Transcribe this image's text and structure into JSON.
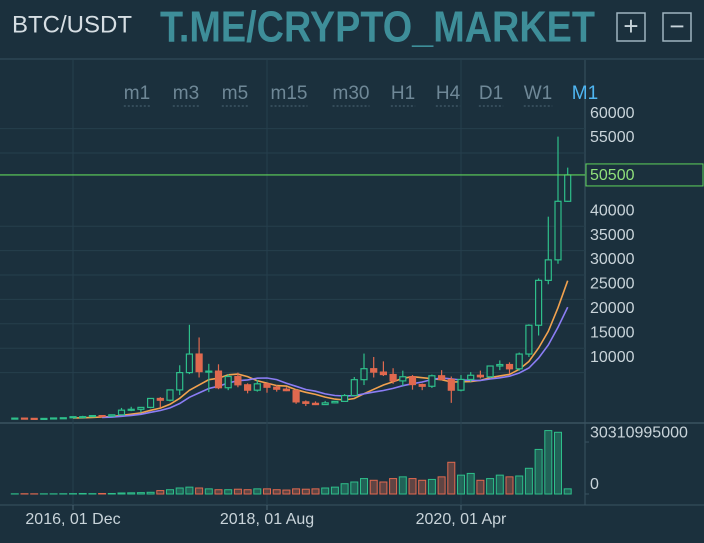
{
  "header": {
    "pair": "BTC/USDT",
    "watermark": "T.ME/CRYPTO_MARKET",
    "zoom_in": "+",
    "zoom_out": "−"
  },
  "timeframes": [
    "m1",
    "m3",
    "m5",
    "m15",
    "m30",
    "H1",
    "H4",
    "D1",
    "W1",
    "M1"
  ],
  "selected_timeframe": "M1",
  "chart_data": {
    "type": "candlestick",
    "categories": [
      null,
      null,
      null,
      null,
      null,
      null,
      "2016, 01 Dec",
      null,
      null,
      null,
      null,
      null,
      null,
      null,
      null,
      null,
      null,
      null,
      null,
      null,
      null,
      null,
      null,
      null,
      null,
      null,
      "2018, 01 Aug",
      null,
      null,
      null,
      null,
      null,
      null,
      null,
      null,
      null,
      null,
      null,
      null,
      null,
      null,
      null,
      null,
      null,
      null,
      null,
      "2020, 01 Apr",
      null,
      null,
      null,
      null,
      null,
      null,
      null,
      null,
      null,
      null,
      null
    ],
    "open": [
      530,
      670,
      620,
      575,
      610,
      700,
      745,
      965,
      970,
      1190,
      1070,
      1350,
      2300,
      2480,
      2870,
      4700,
      4340,
      6450,
      10000,
      13800,
      10200,
      10300,
      6900,
      9200,
      7500,
      6400,
      7700,
      7000,
      6600,
      6300,
      4000,
      3700,
      3450,
      3800,
      4100,
      5300,
      8550,
      10800,
      10100,
      9600,
      8300,
      9150,
      7550,
      7200,
      9350,
      8600,
      6400,
      8600,
      9450,
      9140,
      11350,
      11650,
      10780,
      13800,
      19700,
      28900,
      33100,
      45100
    ],
    "high": [
      780,
      700,
      630,
      620,
      720,
      750,
      980,
      1150,
      1200,
      1290,
      1350,
      2760,
      3000,
      2900,
      4750,
      4980,
      6470,
      11500,
      19800,
      17200,
      11800,
      11700,
      9700,
      10000,
      7800,
      8500,
      7750,
      7400,
      7000,
      6600,
      4300,
      4100,
      4200,
      4150,
      5600,
      9100,
      13900,
      13200,
      12300,
      10900,
      10400,
      9500,
      7750,
      9600,
      10500,
      9200,
      9500,
      10100,
      10400,
      11450,
      12500,
      12100,
      14100,
      19900,
      29300,
      41950,
      58350,
      52000
    ],
    "low": [
      520,
      600,
      540,
      570,
      605,
      690,
      740,
      750,
      920,
      900,
      1060,
      1350,
      2100,
      1830,
      2700,
      2810,
      4100,
      5400,
      9700,
      9000,
      6000,
      6600,
      6400,
      7000,
      5750,
      6100,
      5880,
      6100,
      6200,
      3600,
      3150,
      3350,
      3400,
      3700,
      4050,
      5300,
      7450,
      9000,
      9300,
      7700,
      7300,
      6500,
      6400,
      6850,
      8400,
      3800,
      6150,
      8100,
      8800,
      8900,
      10500,
      9800,
      10400,
      13200,
      17600,
      28100,
      32300,
      45000
    ],
    "close": [
      670,
      620,
      575,
      610,
      700,
      745,
      965,
      970,
      1190,
      1070,
      1350,
      2300,
      2480,
      2870,
      4700,
      4340,
      6450,
      10000,
      13800,
      10200,
      10300,
      6900,
      9200,
      7500,
      6400,
      7700,
      7000,
      6600,
      6300,
      4000,
      3700,
      3450,
      3800,
      4100,
      5300,
      8550,
      10800,
      10100,
      9600,
      8300,
      9150,
      7550,
      7200,
      9350,
      8600,
      6400,
      8600,
      9450,
      9140,
      11350,
      11650,
      10780,
      13800,
      19700,
      28900,
      33100,
      45100,
      50500
    ],
    "up_color": "#2ebf8a",
    "down_color": "#e0694f",
    "series": [
      {
        "color": "#f2a24f",
        "values": [
          null,
          null,
          null,
          null,
          null,
          null,
          698,
          741,
          822,
          893,
          999,
          1227,
          1475,
          1747,
          2280,
          2730,
          3499,
          4734,
          6377,
          7480,
          8541,
          8856,
          9550,
          9700,
          9186,
          8314,
          7857,
          7329,
          7243,
          6500,
          5957,
          5536,
          4979,
          4564,
          4379,
          4700,
          5671,
          6586,
          7464,
          8107,
          8829,
          9150,
          8957,
          8750,
          8536,
          8079,
          8121,
          8164,
          8391,
          8984,
          9313,
          9624,
          10681,
          12267,
          15046,
          18469,
          23290,
          28840
        ]
      },
      {
        "color": "#8b7df5",
        "values": [
          null,
          null,
          null,
          null,
          null,
          null,
          null,
          null,
          null,
          812,
          880,
          1048,
          1238,
          1464,
          1864,
          2224,
          2772,
          3675,
          4936,
          5849,
          6744,
          7204,
          7876,
          8339,
          8509,
          8845,
          8900,
          8560,
          7810,
          7190,
          6530,
          6185,
          5645,
          5305,
          5195,
          5280,
          5660,
          6010,
          6340,
          6770,
          7315,
          7725,
          8065,
          8590,
          8920,
          8705,
          8485,
          8420,
          8374,
          8679,
          8929,
          9252,
          9912,
          10947,
          12977,
          15647,
          19297,
          23402
        ]
      }
    ],
    "ylim": [
      0,
      66000
    ],
    "yticks": [
      10000,
      15000,
      20000,
      25000,
      30000,
      35000,
      40000,
      55000,
      60000
    ],
    "last_price": 50500,
    "last_price_color": "#5fd35a",
    "grid": true,
    "volume": {
      "values": [
        100000000,
        150000000,
        100000000,
        100000000,
        100000000,
        150000000,
        200000000,
        300000000,
        200000000,
        300000000,
        300000000,
        600000000,
        700000000,
        800000000,
        1000000000,
        2000000000,
        2500000000,
        3500000000,
        4000000000,
        3500000000,
        3000000000,
        2500000000,
        2500000000,
        2800000000,
        2500000000,
        3000000000,
        3000000000,
        2500000000,
        2300000000,
        3000000000,
        2800000000,
        3000000000,
        3500000000,
        4000000000,
        6000000000,
        7000000000,
        9000000000,
        8000000000,
        7000000000,
        9000000000,
        10000000000,
        9000000000,
        8000000000,
        8500000000,
        10000000000,
        18500000000,
        11000000000,
        12000000000,
        8000000000,
        9000000000,
        11000000000,
        10000000000,
        10500000000,
        15000000000,
        26000000000,
        37000000000,
        36000000000,
        3000000000
      ],
      "ylim": [
        0,
        38500000000
      ],
      "yticks": [
        0,
        30310995000
      ]
    }
  }
}
